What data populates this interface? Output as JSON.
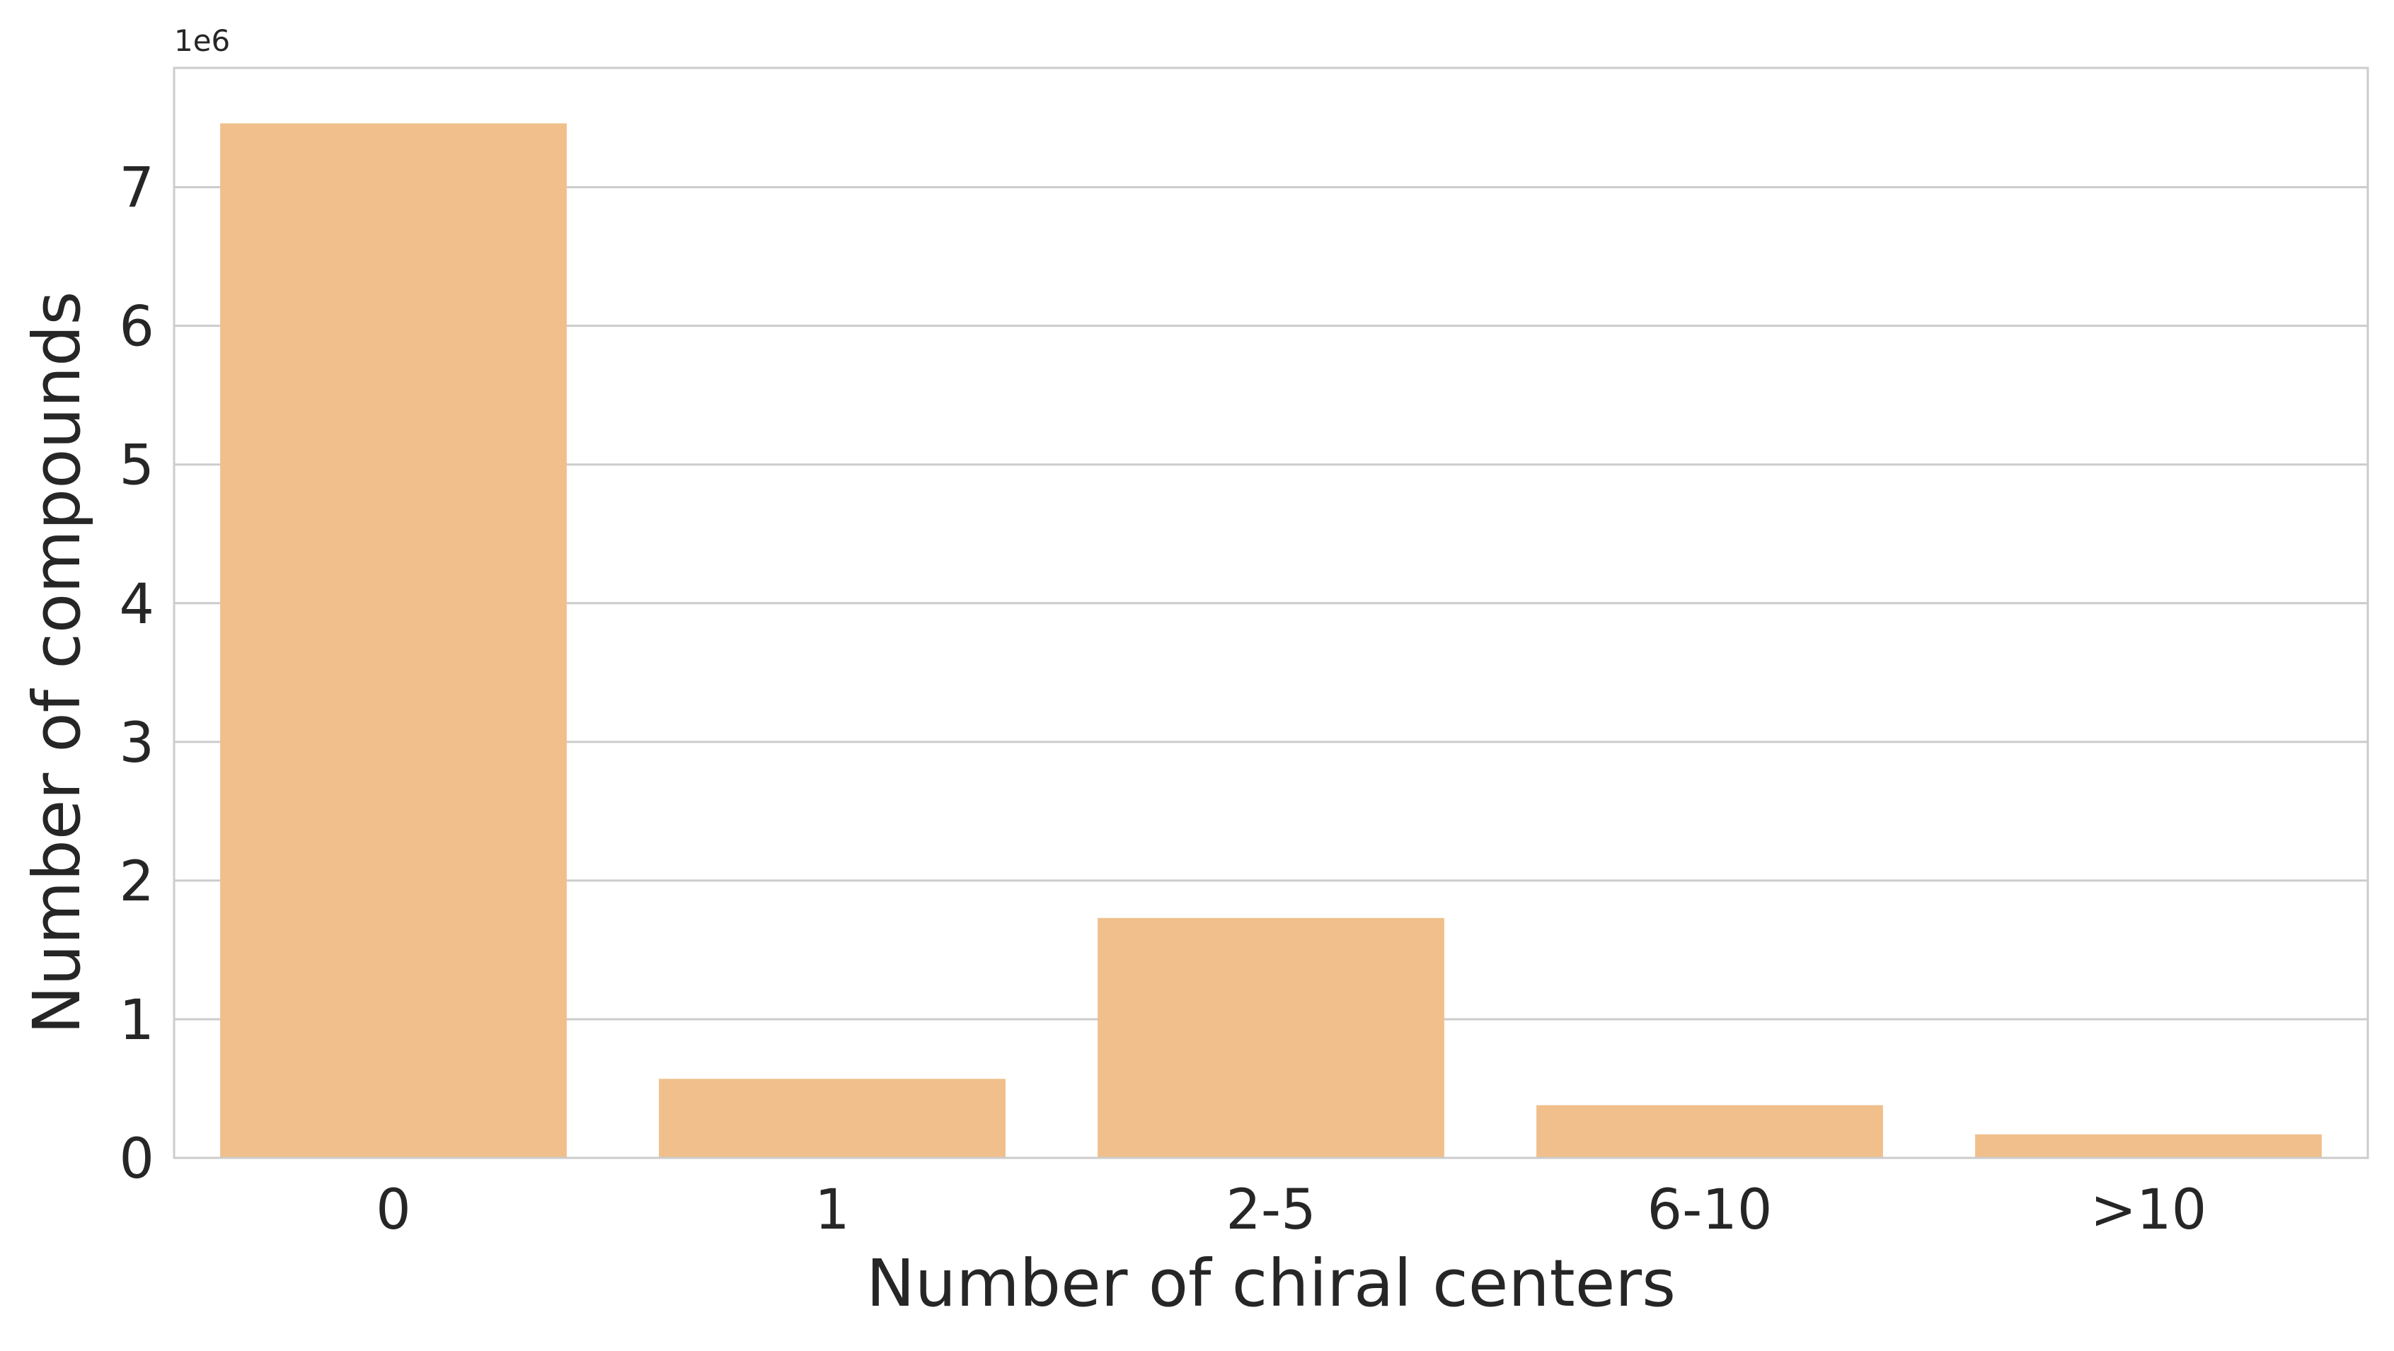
{
  "chart_data": {
    "type": "bar",
    "categories": [
      "0",
      "1",
      "2-5",
      "6-10",
      ">10"
    ],
    "values": [
      7460000,
      570000,
      1730000,
      380000,
      170000
    ],
    "title": "",
    "xlabel": "Number of chiral centers",
    "ylabel": "Number of compounds",
    "ylim": [
      0,
      7860000
    ],
    "y_ticks": [
      0,
      1,
      2,
      3,
      4,
      5,
      6,
      7
    ],
    "y_scale_label": "1e6",
    "grid": true,
    "legend": "none",
    "colors": {
      "bar": "#f0bf8b",
      "grid": "#cccccc",
      "frame": "#cccccc",
      "text": "#262626"
    }
  }
}
